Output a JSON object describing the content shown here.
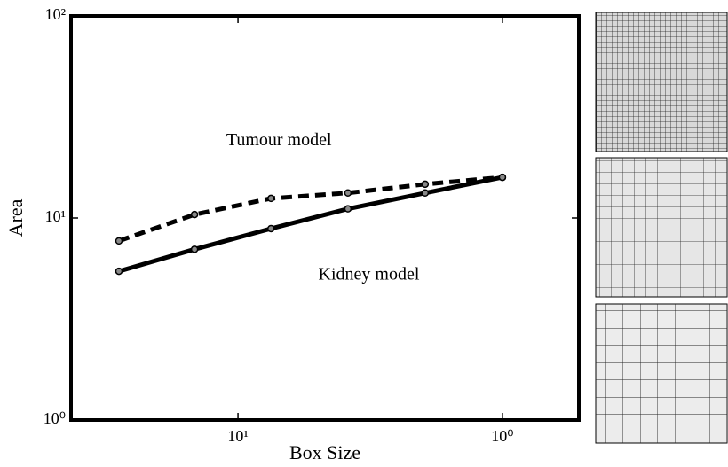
{
  "chart_data": {
    "type": "line",
    "xlabel": "Box Size",
    "ylabel": "Area",
    "xscale": "log",
    "yscale": "log",
    "xlim": [
      42.8,
      0.514
    ],
    "ylim": [
      1,
      100
    ],
    "xticks": [
      {
        "value": 10,
        "label": "10¹"
      },
      {
        "value": 1,
        "label": "10⁰"
      }
    ],
    "yticks": [
      {
        "value": 1,
        "label": "10⁰"
      },
      {
        "value": 10,
        "label": "10¹"
      },
      {
        "value": 100,
        "label": "10²"
      }
    ],
    "annotations": [
      {
        "text": "Tumour model",
        "x": 7.0,
        "y": 24
      },
      {
        "text": "Kidney model",
        "x": 3.2,
        "y": 5.2
      }
    ],
    "series": [
      {
        "name": "Tumour model",
        "color": "#000000",
        "dash": true,
        "x": [
          28.2,
          14.6,
          7.5,
          3.84,
          1.96,
          1.0
        ],
        "values": [
          7.7,
          10.4,
          12.5,
          13.3,
          14.7,
          15.9
        ]
      },
      {
        "name": "Kidney model",
        "color": "#000000",
        "dash": false,
        "x": [
          28.2,
          14.6,
          7.5,
          3.84,
          1.96,
          1.0
        ],
        "values": [
          5.45,
          7.0,
          8.86,
          11.1,
          13.3,
          15.9
        ]
      }
    ]
  }
}
